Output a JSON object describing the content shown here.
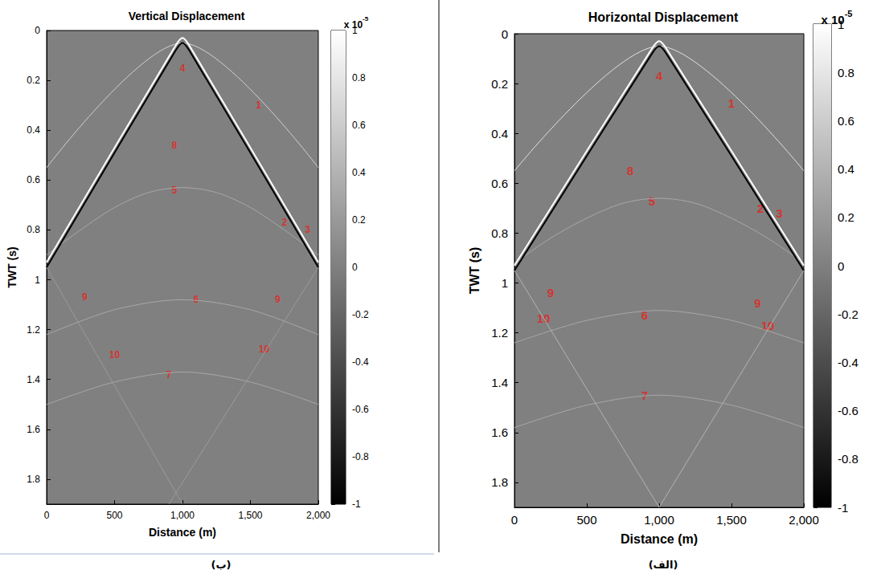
{
  "chart_data": [
    {
      "type": "line",
      "panel_label": "(ب)",
      "title": "Vertical Displacement",
      "x_label": "Distance (m)",
      "y_label": "TWT (s)",
      "xlim": [
        0,
        2000
      ],
      "xticks": [
        0,
        500,
        1000,
        1500,
        2000
      ],
      "ylim": [
        0,
        1.9
      ],
      "yticks": [
        0,
        0.2,
        0.4,
        0.6,
        0.8,
        1,
        1.2,
        1.4,
        1.6,
        1.8
      ],
      "series": [
        {
          "color": "#d0d0d0",
          "values": [
            [
              0,
              0.55
            ],
            [
              1000,
              0.05
            ],
            [
              2000,
              0.55
            ]
          ]
        },
        {
          "color": "#a8a8a8",
          "values": [
            [
              0,
              0.9
            ],
            [
              250,
              0.8
            ],
            [
              500,
              0.71
            ],
            [
              750,
              0.65
            ],
            [
              1000,
              0.63
            ],
            [
              1250,
              0.65
            ],
            [
              1500,
              0.71
            ],
            [
              1750,
              0.8
            ],
            [
              2000,
              0.9
            ]
          ]
        },
        {
          "color": "#a8a8a8",
          "values": [
            [
              0,
              1.22
            ],
            [
              500,
              1.12
            ],
            [
              1000,
              1.08
            ],
            [
              1500,
              1.12
            ],
            [
              2000,
              1.22
            ]
          ]
        },
        {
          "color": "#a8a8a8",
          "values": [
            [
              0,
              1.5
            ],
            [
              500,
              1.41
            ],
            [
              1000,
              1.37
            ],
            [
              1500,
              1.41
            ],
            [
              2000,
              1.5
            ]
          ]
        },
        {
          "color": "#9a9a9a",
          "values": [
            [
              2000,
              0.95
            ],
            [
              900,
              1.9
            ]
          ]
        },
        {
          "color": "#9a9a9a",
          "values": [
            [
              0,
              0.95
            ],
            [
              1000,
              1.9
            ]
          ]
        },
        {
          "color": "#ffffff",
          "values": [
            [
              0,
              0.93
            ],
            [
              950,
              0.06
            ],
            [
              1000,
              0.03
            ],
            [
              1050,
              0.06
            ],
            [
              2000,
              0.93
            ]
          ]
        },
        {
          "color": "#000000",
          "values": [
            [
              0,
              0.95
            ],
            [
              950,
              0.08
            ],
            [
              1000,
              0.05
            ],
            [
              1050,
              0.08
            ],
            [
              2000,
              0.95
            ]
          ]
        }
      ],
      "annotations": [
        {
          "text": "4",
          "x": 1000,
          "y": 0.15
        },
        {
          "text": "1",
          "x": 1560,
          "y": 0.3
        },
        {
          "text": "8",
          "x": 940,
          "y": 0.46
        },
        {
          "text": "5",
          "x": 940,
          "y": 0.64
        },
        {
          "text": "2",
          "x": 1750,
          "y": 0.77
        },
        {
          "text": "3",
          "x": 1920,
          "y": 0.8
        },
        {
          "text": "9",
          "x": 280,
          "y": 1.07
        },
        {
          "text": "6",
          "x": 1100,
          "y": 1.08
        },
        {
          "text": "9",
          "x": 1700,
          "y": 1.08
        },
        {
          "text": "10",
          "x": 500,
          "y": 1.3
        },
        {
          "text": "10",
          "x": 1600,
          "y": 1.28
        },
        {
          "text": "7",
          "x": 900,
          "y": 1.38
        }
      ],
      "colorbar": {
        "label": "x 10",
        "exponent": "-5",
        "lim": [
          -1,
          1
        ],
        "ticks": [
          -1,
          -0.8,
          -0.6,
          -0.4,
          -0.2,
          0,
          0.2,
          0.4,
          0.6,
          0.8,
          1
        ]
      }
    },
    {
      "type": "line",
      "panel_label": "(الف)",
      "title": "Horizontal Displacement",
      "x_label": "Distance (m)",
      "y_label": "TWT (s)",
      "xlim": [
        0,
        2000
      ],
      "xticks": [
        0,
        500,
        1000,
        1500,
        2000
      ],
      "ylim": [
        0,
        1.9
      ],
      "yticks": [
        0,
        0.2,
        0.4,
        0.6,
        0.8,
        1,
        1.2,
        1.4,
        1.6,
        1.8
      ],
      "series": [
        {
          "color": "#e0e0e0",
          "values": [
            [
              0,
              0.55
            ],
            [
              1000,
              0.05
            ],
            [
              2000,
              0.55
            ]
          ]
        },
        {
          "color": "#a8a8a8",
          "values": [
            [
              0,
              0.92
            ],
            [
              250,
              0.82
            ],
            [
              500,
              0.74
            ],
            [
              750,
              0.68
            ],
            [
              1000,
              0.66
            ],
            [
              1250,
              0.68
            ],
            [
              1500,
              0.74
            ],
            [
              1750,
              0.82
            ],
            [
              2000,
              0.92
            ]
          ]
        },
        {
          "color": "#a8a8a8",
          "values": [
            [
              0,
              1.24
            ],
            [
              500,
              1.15
            ],
            [
              1000,
              1.11
            ],
            [
              1500,
              1.15
            ],
            [
              2000,
              1.24
            ]
          ]
        },
        {
          "color": "#a8a8a8",
          "values": [
            [
              0,
              1.58
            ],
            [
              500,
              1.49
            ],
            [
              1000,
              1.45
            ],
            [
              1500,
              1.49
            ],
            [
              2000,
              1.58
            ]
          ]
        },
        {
          "color": "#b4b4b4",
          "values": [
            [
              2000,
              0.95
            ],
            [
              1000,
              1.9
            ]
          ]
        },
        {
          "color": "#b4b4b4",
          "values": [
            [
              0,
              0.95
            ],
            [
              1000,
              1.9
            ]
          ]
        },
        {
          "color": "#ffffff",
          "values": [
            [
              0,
              0.93
            ],
            [
              950,
              0.06
            ],
            [
              1000,
              0.03
            ],
            [
              1050,
              0.06
            ],
            [
              2000,
              0.93
            ]
          ]
        },
        {
          "color": "#000000",
          "values": [
            [
              0,
              0.95
            ],
            [
              950,
              0.08
            ],
            [
              1000,
              0.05
            ],
            [
              1050,
              0.08
            ],
            [
              2000,
              0.95
            ]
          ]
        }
      ],
      "annotations": [
        {
          "text": "4",
          "x": 1000,
          "y": 0.17
        },
        {
          "text": "1",
          "x": 1500,
          "y": 0.28
        },
        {
          "text": "8",
          "x": 800,
          "y": 0.55
        },
        {
          "text": "5",
          "x": 950,
          "y": 0.67
        },
        {
          "text": "2",
          "x": 1700,
          "y": 0.7
        },
        {
          "text": "3",
          "x": 1830,
          "y": 0.72
        },
        {
          "text": "9",
          "x": 250,
          "y": 1.04
        },
        {
          "text": "10",
          "x": 200,
          "y": 1.14
        },
        {
          "text": "6",
          "x": 900,
          "y": 1.13
        },
        {
          "text": "9",
          "x": 1680,
          "y": 1.08
        },
        {
          "text": "10",
          "x": 1750,
          "y": 1.17
        },
        {
          "text": "7",
          "x": 900,
          "y": 1.45
        }
      ],
      "colorbar": {
        "label": "x 10",
        "exponent": "-5",
        "lim": [
          -1,
          1
        ],
        "ticks": [
          -1,
          -0.8,
          -0.6,
          -0.4,
          -0.2,
          0,
          0.2,
          0.4,
          0.6,
          0.8,
          1
        ]
      }
    }
  ]
}
